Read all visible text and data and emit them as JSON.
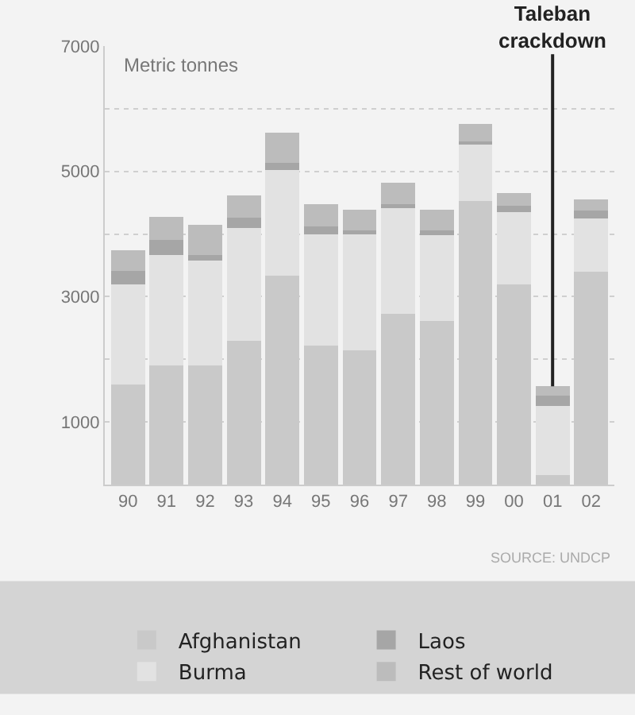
{
  "chart_data": {
    "type": "bar",
    "stacked": true,
    "ylabel": "Metric tonnes",
    "categories": [
      "90",
      "91",
      "92",
      "93",
      "94",
      "95",
      "96",
      "97",
      "98",
      "99",
      "00",
      "01",
      "02"
    ],
    "series": [
      {
        "name": "Afghanistan",
        "color": "#c9c9c9",
        "values": [
          1600,
          1900,
          1900,
          2300,
          3340,
          2220,
          2140,
          2730,
          2610,
          4530,
          3200,
          150,
          3400
        ]
      },
      {
        "name": "Burma",
        "color": "#e2e2e2",
        "values": [
          1600,
          1770,
          1670,
          1800,
          1680,
          1780,
          1860,
          1680,
          1370,
          900,
          1150,
          1100,
          850
        ]
      },
      {
        "name": "Laos",
        "color": "#a6a6a6",
        "values": [
          210,
          230,
          90,
          160,
          110,
          120,
          60,
          70,
          80,
          50,
          100,
          170,
          120
        ]
      },
      {
        "name": "Rest of world",
        "color": "#bcbcbc",
        "values": [
          330,
          370,
          490,
          350,
          490,
          360,
          330,
          340,
          330,
          280,
          210,
          150,
          180
        ]
      }
    ],
    "ylim": [
      0,
      7000
    ],
    "yticks": [
      {
        "value": 0,
        "label": null
      },
      1000,
      {
        "value": 2000,
        "label": null
      },
      3000,
      {
        "value": 4000,
        "label": null
      },
      5000,
      {
        "value": 6000,
        "label": null
      },
      7000
    ],
    "grid": "y",
    "legend": "bottom",
    "annotations": [
      {
        "text": "Taleban crackdown",
        "x": "01",
        "y": 1570
      },
      "SOURCE: UNDCP"
    ]
  }
}
